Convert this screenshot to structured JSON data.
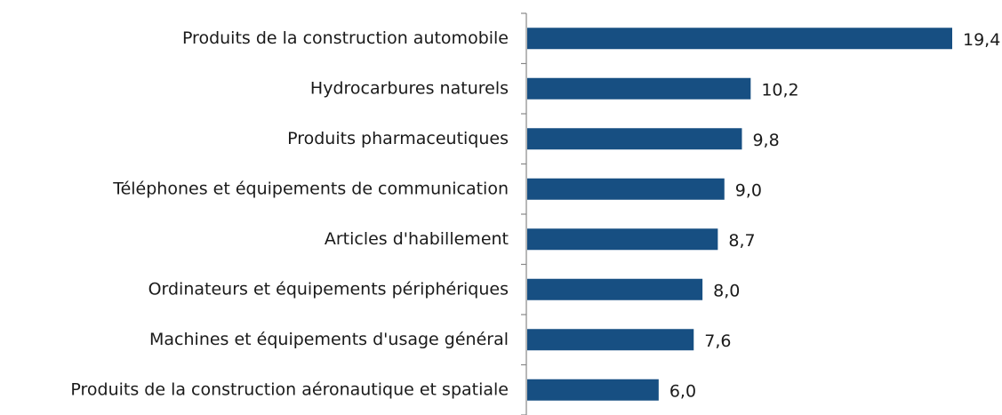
{
  "chart_data": {
    "type": "bar",
    "orientation": "horizontal",
    "categories": [
      "Produits de la construction automobile",
      "Hydrocarbures naturels",
      "Produits pharmaceutiques",
      "Téléphones et équipements de communication",
      "Articles d'habillement",
      "Ordinateurs et équipements périphériques",
      "Machines et équipements d'usage général",
      "Produits de la construction aéronautique et spatiale"
    ],
    "values": [
      19.4,
      10.2,
      9.8,
      9.0,
      8.7,
      8.0,
      7.6,
      6.0
    ],
    "value_labels": [
      "19,4",
      "10,2",
      "9,8",
      "9,0",
      "8,7",
      "8,0",
      "7,6",
      "6,0"
    ],
    "color": "#174f82"
  }
}
